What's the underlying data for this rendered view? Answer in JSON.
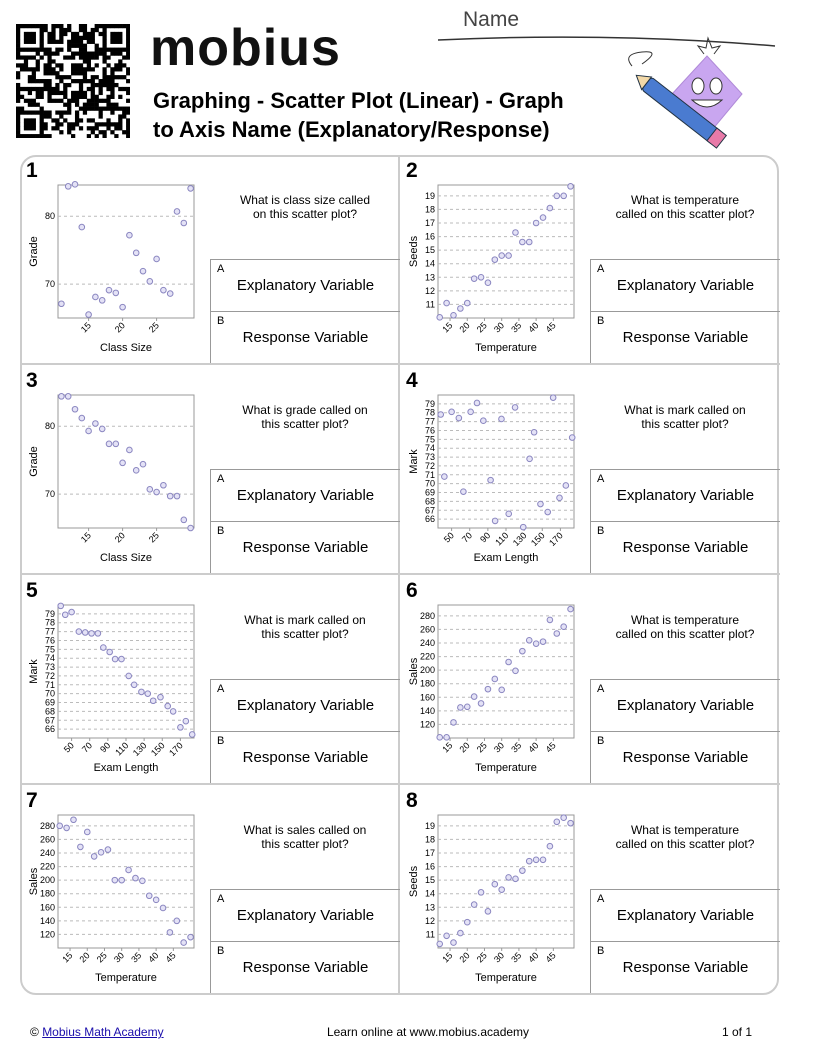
{
  "header": {
    "logo": "mobius",
    "name_label": "Name",
    "title_lines": [
      "Graphing - Scatter Plot (Linear) - Graph",
      "to Axis Name (Explanatory/Response)"
    ]
  },
  "problems": [
    {
      "number": 1,
      "question": "What is class size called on this scatter plot?",
      "chart": {
        "type": "scatter",
        "x_label": "Class Size",
        "y_label": "Grade",
        "x": [
          11,
          12,
          13,
          14,
          15,
          16,
          17,
          18,
          19,
          20,
          21,
          22,
          23,
          24,
          25,
          26,
          27,
          28,
          29,
          30
        ],
        "y": [
          67.1,
          84.4,
          84.7,
          78.4,
          65.5,
          68.1,
          67.6,
          69.1,
          68.7,
          66.6,
          77.2,
          74.6,
          71.9,
          70.4,
          73.7,
          69.1,
          68.6,
          80.7,
          79.0,
          84.1
        ],
        "xlim": [
          10.5,
          30.5
        ],
        "ylim": [
          65,
          84.6
        ],
        "xticks": [
          15,
          20,
          25
        ],
        "yticks": [
          70,
          80
        ]
      },
      "options": [
        {
          "letter": "A",
          "text": "Explanatory Variable"
        },
        {
          "letter": "B",
          "text": "Response Variable"
        }
      ]
    },
    {
      "number": 2,
      "question": "What is temperature called on this scatter plot?",
      "chart": {
        "type": "scatter",
        "x_label": "Temperature",
        "y_label": "Seeds",
        "x": [
          12,
          14,
          16,
          18,
          20,
          22,
          24,
          26,
          28,
          30,
          32,
          34,
          36,
          38,
          40,
          42,
          44,
          46,
          48,
          50
        ],
        "y": [
          10.05,
          11.1,
          10.2,
          10.7,
          11.1,
          12.9,
          13.0,
          12.6,
          14.3,
          14.6,
          14.6,
          16.3,
          15.6,
          15.6,
          17.0,
          17.4,
          18.1,
          19.0,
          19.0,
          19.7
        ],
        "xlim": [
          11.5,
          51
        ],
        "ylim": [
          10,
          19.8
        ],
        "xticks": [
          15,
          20,
          25,
          30,
          35,
          40,
          45
        ],
        "yticks": [
          11,
          12,
          13,
          14,
          15,
          16,
          17,
          18,
          19
        ]
      },
      "options": [
        {
          "letter": "A",
          "text": "Explanatory Variable"
        },
        {
          "letter": "B",
          "text": "Response Variable"
        }
      ]
    },
    {
      "number": 3,
      "question": "What is grade called on this scatter plot?",
      "chart": {
        "type": "scatter",
        "x_label": "Class Size",
        "y_label": "Grade",
        "x": [
          11,
          12,
          13,
          14,
          15,
          16,
          17,
          18,
          19,
          20,
          21,
          22,
          23,
          24,
          25,
          26,
          27,
          28,
          29,
          30
        ],
        "y": [
          84.4,
          84.4,
          82.5,
          81.2,
          79.3,
          80.4,
          79.6,
          77.4,
          77.4,
          74.6,
          76.5,
          73.5,
          74.4,
          70.7,
          70.3,
          71.3,
          69.7,
          69.7,
          66.2,
          65.0
        ],
        "xlim": [
          10.5,
          30.5
        ],
        "ylim": [
          65,
          84.6
        ],
        "xticks": [
          15,
          20,
          25
        ],
        "yticks": [
          70,
          80
        ]
      },
      "options": [
        {
          "letter": "A",
          "text": "Explanatory Variable"
        },
        {
          "letter": "B",
          "text": "Response Variable"
        }
      ]
    },
    {
      "number": 4,
      "question": "What is mark called on this scatter plot?",
      "chart": {
        "type": "scatter",
        "x_label": "Exam Length",
        "y_label": "Mark",
        "x": [
          38,
          42,
          50,
          58,
          63,
          71,
          78,
          85,
          93,
          98,
          105,
          113,
          120,
          129,
          136,
          141,
          148,
          156,
          162,
          169,
          176,
          183
        ],
        "y": [
          77.8,
          70.8,
          78.1,
          77.4,
          69.1,
          78.1,
          79.1,
          77.1,
          70.4,
          65.8,
          77.3,
          66.6,
          78.6,
          65.1,
          72.8,
          75.8,
          67.7,
          66.8,
          79.7,
          68.4,
          69.8,
          75.2
        ],
        "xlim": [
          35,
          185
        ],
        "ylim": [
          65,
          80
        ],
        "xticks": [
          50,
          70,
          90,
          110,
          130,
          150,
          170
        ],
        "yticks": [
          66,
          67,
          68,
          69,
          70,
          71,
          72,
          73,
          74,
          75,
          76,
          77,
          78,
          79
        ]
      },
      "options": [
        {
          "letter": "A",
          "text": "Explanatory Variable"
        },
        {
          "letter": "B",
          "text": "Response Variable"
        }
      ]
    },
    {
      "number": 5,
      "question": "What is mark called on this scatter plot?",
      "chart": {
        "type": "scatter",
        "x_label": "Exam Length",
        "y_label": "Mark",
        "x": [
          38,
          43,
          50,
          58,
          65,
          72,
          79,
          85,
          92,
          98,
          105,
          113,
          119,
          127,
          134,
          140,
          148,
          156,
          162,
          170,
          176,
          183
        ],
        "y": [
          79.9,
          78.9,
          79.2,
          77.0,
          76.9,
          76.8,
          76.8,
          75.2,
          74.7,
          73.9,
          73.9,
          72.0,
          71.0,
          70.2,
          70.0,
          69.2,
          69.6,
          68.6,
          68.0,
          66.2,
          66.9,
          65.4
        ],
        "xlim": [
          35,
          185
        ],
        "ylim": [
          65,
          80
        ],
        "xticks": [
          50,
          70,
          90,
          110,
          130,
          150,
          170
        ],
        "yticks": [
          66,
          67,
          68,
          69,
          70,
          71,
          72,
          73,
          74,
          75,
          76,
          77,
          78,
          79
        ]
      },
      "options": [
        {
          "letter": "A",
          "text": "Explanatory Variable"
        },
        {
          "letter": "B",
          "text": "Response Variable"
        }
      ]
    },
    {
      "number": 6,
      "question": "What is temperature called on this scatter plot?",
      "chart": {
        "type": "scatter",
        "x_label": "Temperature",
        "y_label": "Sales",
        "x": [
          12,
          14,
          16,
          18,
          20,
          22,
          24,
          26,
          28,
          30,
          32,
          34,
          36,
          38,
          40,
          42,
          44,
          46,
          48,
          50
        ],
        "y": [
          101,
          101,
          123,
          145,
          146,
          161,
          151,
          172,
          187,
          171,
          212,
          199,
          228,
          244,
          239,
          242,
          274,
          254,
          264,
          290
        ],
        "xlim": [
          11.5,
          51
        ],
        "ylim": [
          100,
          296
        ],
        "xticks": [
          15,
          20,
          25,
          30,
          35,
          40,
          45
        ],
        "yticks": [
          120,
          140,
          160,
          180,
          200,
          220,
          240,
          260,
          280
        ]
      },
      "options": [
        {
          "letter": "A",
          "text": "Explanatory Variable"
        },
        {
          "letter": "B",
          "text": "Response Variable"
        }
      ]
    },
    {
      "number": 7,
      "question": "What is sales called on this scatter plot?",
      "chart": {
        "type": "scatter",
        "x_label": "Temperature",
        "y_label": "Sales",
        "x": [
          12,
          14,
          16,
          18,
          20,
          22,
          24,
          26,
          28,
          30,
          32,
          34,
          36,
          38,
          40,
          42,
          44,
          46,
          48,
          50
        ],
        "y": [
          280,
          277,
          289,
          249,
          271,
          235,
          241,
          245,
          200,
          200,
          215,
          203,
          199,
          177,
          171,
          159,
          123,
          140,
          108,
          116
        ],
        "xlim": [
          11.5,
          51
        ],
        "ylim": [
          100,
          296
        ],
        "xticks": [
          15,
          20,
          25,
          30,
          35,
          40,
          45
        ],
        "yticks": [
          120,
          140,
          160,
          180,
          200,
          220,
          240,
          260,
          280
        ]
      },
      "options": [
        {
          "letter": "A",
          "text": "Explanatory Variable"
        },
        {
          "letter": "B",
          "text": "Response Variable"
        }
      ]
    },
    {
      "number": 8,
      "question": "What is temperature called on this scatter plot?",
      "chart": {
        "type": "scatter",
        "x_label": "Temperature",
        "y_label": "Seeds",
        "x": [
          12,
          14,
          16,
          18,
          20,
          22,
          24,
          26,
          28,
          30,
          32,
          34,
          36,
          38,
          40,
          42,
          44,
          46,
          48,
          50
        ],
        "y": [
          10.3,
          10.9,
          10.4,
          11.1,
          11.9,
          13.2,
          14.1,
          12.7,
          14.7,
          14.3,
          15.2,
          15.1,
          15.7,
          16.4,
          16.5,
          16.5,
          17.5,
          19.3,
          19.6,
          19.2
        ],
        "xlim": [
          11.5,
          51
        ],
        "ylim": [
          10,
          19.8
        ],
        "xticks": [
          15,
          20,
          25,
          30,
          35,
          40,
          45
        ],
        "yticks": [
          11,
          12,
          13,
          14,
          15,
          16,
          17,
          18,
          19
        ]
      },
      "options": [
        {
          "letter": "A",
          "text": "Explanatory Variable"
        },
        {
          "letter": "B",
          "text": "Response Variable"
        }
      ]
    }
  ],
  "footer": {
    "copyright": "©",
    "link": "Mobius Math Academy",
    "center": "Learn online at www.mobius.academy",
    "page": "1 of 1"
  }
}
